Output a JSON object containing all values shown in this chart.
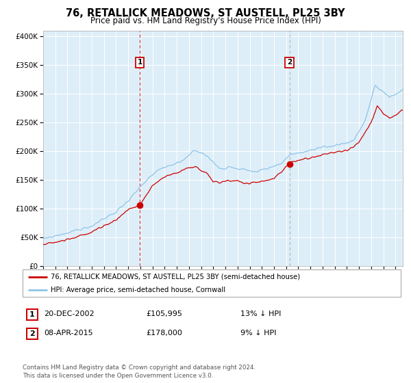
{
  "title": "76, RETALLICK MEADOWS, ST AUSTELL, PL25 3BY",
  "subtitle": "Price paid vs. HM Land Registry's House Price Index (HPI)",
  "legend_line1": "76, RETALLICK MEADOWS, ST AUSTELL, PL25 3BY (semi-detached house)",
  "legend_line2": "HPI: Average price, semi-detached house, Cornwall",
  "annotation1_label": "1",
  "annotation1_date": "20-DEC-2002",
  "annotation1_price": "£105,995",
  "annotation1_hpi": "13% ↓ HPI",
  "annotation2_label": "2",
  "annotation2_date": "08-APR-2015",
  "annotation2_price": "£178,000",
  "annotation2_hpi": "9% ↓ HPI",
  "sale1_year": 2002.96,
  "sale1_value": 105995,
  "sale2_year": 2015.27,
  "sale2_value": 178000,
  "ylabel_values": [
    0,
    50000,
    100000,
    150000,
    200000,
    250000,
    300000,
    350000,
    400000
  ],
  "hpi_color": "#8ec4e8",
  "price_color": "#cc0000",
  "bg_color": "#deeef8",
  "vline1_color": "#cc0000",
  "vline2_color": "#aaaaaa",
  "footer": "Contains HM Land Registry data © Crown copyright and database right 2024.\nThis data is licensed under the Open Government Licence v3.0.",
  "xmin": 1995.0,
  "xmax": 2024.6,
  "ymin": 0,
  "ymax": 410000
}
